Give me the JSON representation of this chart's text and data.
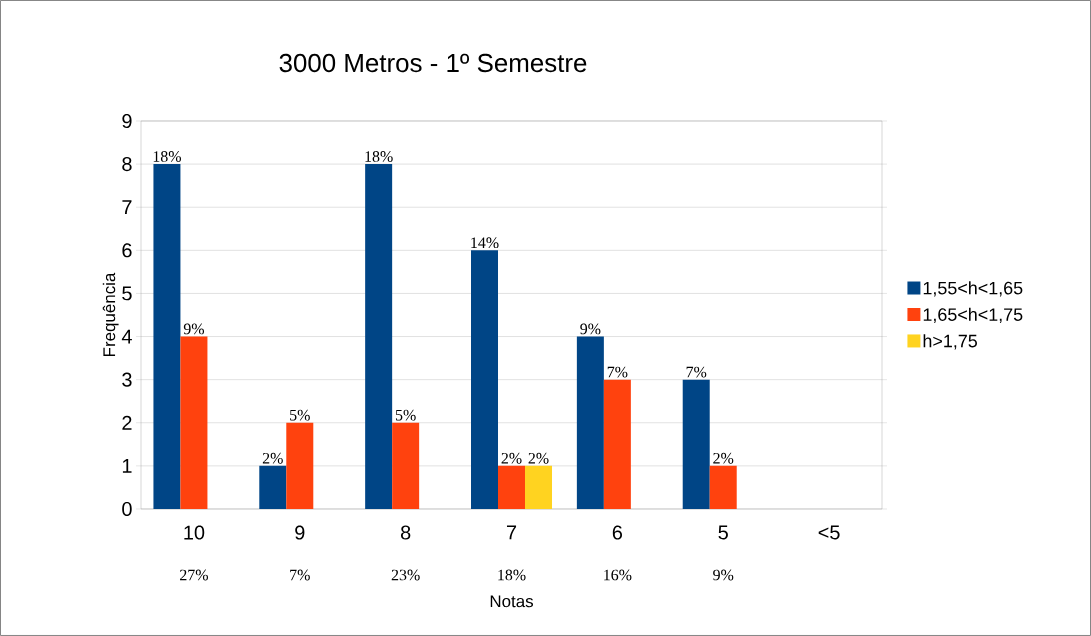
{
  "chart_data": {
    "type": "bar",
    "title": "3000 Metros - 1º Semestre",
    "xlabel": "Notas",
    "ylabel": "Frequência",
    "categories": [
      "10",
      "9",
      "8",
      "7",
      "6",
      "5",
      "<5"
    ],
    "series": [
      {
        "name": "1,55<h<1,65",
        "color": "#004586",
        "values": [
          8,
          1,
          8,
          6,
          4,
          3,
          null
        ]
      },
      {
        "name": "1,65<h<1,75",
        "color": "#ff420e",
        "values": [
          4,
          2,
          2,
          1,
          3,
          1,
          null
        ]
      },
      {
        "name": "h>1,75",
        "color": "#ffd320",
        "values": [
          null,
          null,
          null,
          1,
          null,
          null,
          null
        ]
      }
    ],
    "annotations": [
      "18%",
      "9%",
      "2%",
      "5%",
      "18%",
      "5%",
      "14%",
      "2%",
      "2%",
      "9%",
      "7%",
      "7%",
      "2%",
      "27%",
      "7%",
      "23%",
      "18%",
      "16%",
      "9%"
    ],
    "ylim": [
      0,
      9
    ],
    "yticks": [
      0,
      1,
      2,
      3,
      4,
      5,
      6,
      7,
      8,
      9
    ],
    "grid": "y",
    "legend": "right"
  }
}
